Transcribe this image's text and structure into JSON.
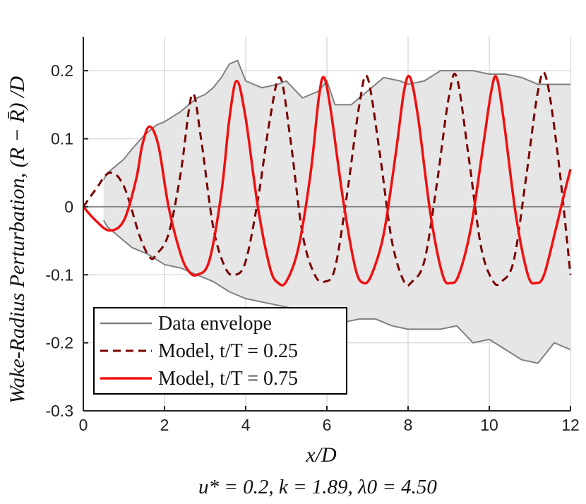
{
  "chart_data": {
    "type": "line",
    "title": "",
    "xlabel": "x/D",
    "ylabel": "Wake-Radius Perturbation, (R − R̄) /D",
    "subtitle": "u* = 0.2, k = 1.89, λ0 = 4.50",
    "xlim": [
      0,
      12
    ],
    "ylim": [
      -0.3,
      0.25
    ],
    "xticks": [
      0,
      2,
      4,
      6,
      8,
      10,
      12
    ],
    "xtick_labels": [
      "0",
      "2",
      "4",
      "6",
      "8",
      "10",
      "12"
    ],
    "yticks": [
      -0.3,
      -0.2,
      -0.1,
      0,
      0.1,
      0.2
    ],
    "ytick_labels": [
      "-0.3",
      "-0.2",
      "-0.1",
      "0",
      "0.1",
      "0.2"
    ],
    "grid": true,
    "legend_position": "bottom-left",
    "series": [
      {
        "name": "Data envelope",
        "style": "solid-gray",
        "color": "#808080",
        "upper": {
          "x": [
            0.5,
            0.6,
            0.8,
            1.0,
            1.2,
            1.5,
            1.8,
            2.0,
            2.4,
            2.8,
            3.0,
            3.2,
            3.4,
            3.6,
            3.8,
            4.0,
            4.4,
            4.8,
            5.0,
            5.4,
            5.8,
            6.0,
            6.2,
            6.6,
            7.0,
            7.4,
            7.8,
            8.0,
            8.4,
            8.8,
            9.2,
            9.6,
            10.0,
            10.4,
            10.8,
            11.2,
            11.6,
            12.0
          ],
          "y": [
            0.04,
            0.05,
            0.06,
            0.07,
            0.085,
            0.105,
            0.12,
            0.125,
            0.14,
            0.16,
            0.165,
            0.175,
            0.19,
            0.21,
            0.215,
            0.185,
            0.175,
            0.18,
            0.185,
            0.16,
            0.17,
            0.185,
            0.15,
            0.15,
            0.17,
            0.19,
            0.185,
            0.18,
            0.185,
            0.2,
            0.2,
            0.2,
            0.195,
            0.195,
            0.19,
            0.18,
            0.18,
            0.18
          ]
        },
        "lower": {
          "x": [
            0.5,
            0.6,
            0.8,
            1.0,
            1.2,
            1.6,
            2.0,
            2.4,
            2.8,
            3.2,
            3.6,
            4.0,
            4.4,
            4.8,
            5.2,
            5.6,
            6.0,
            6.4,
            6.8,
            7.2,
            7.6,
            8.0,
            8.4,
            8.8,
            9.2,
            9.6,
            10.0,
            10.4,
            10.8,
            11.2,
            11.6,
            12.0
          ],
          "y": [
            -0.02,
            -0.03,
            -0.04,
            -0.05,
            -0.06,
            -0.07,
            -0.085,
            -0.09,
            -0.1,
            -0.11,
            -0.125,
            -0.135,
            -0.14,
            -0.145,
            -0.15,
            -0.16,
            -0.16,
            -0.17,
            -0.165,
            -0.165,
            -0.175,
            -0.18,
            -0.18,
            -0.18,
            -0.175,
            -0.2,
            -0.195,
            -0.21,
            -0.225,
            -0.23,
            -0.2,
            -0.21
          ]
        }
      },
      {
        "name": "Model, t/T = 0.25",
        "style": "dashed",
        "color": "#7a0000",
        "x": [
          0,
          0.3,
          0.65,
          1.0,
          1.4,
          1.65,
          1.8,
          2.1,
          2.4,
          2.68,
          2.9,
          3.2,
          3.5,
          3.75,
          4.0,
          4.3,
          4.6,
          4.85,
          5.1,
          5.4,
          5.7,
          5.95,
          6.2,
          6.5,
          6.8,
          7.0,
          7.3,
          7.6,
          7.9,
          8.1,
          8.4,
          8.7,
          9.0,
          9.2,
          9.5,
          9.8,
          10.1,
          10.3,
          10.6,
          10.9,
          11.2,
          11.4,
          11.7,
          12.0
        ],
        "y": [
          0,
          0.025,
          0.05,
          0.03,
          -0.045,
          -0.075,
          -0.07,
          -0.04,
          0.05,
          0.165,
          0.1,
          -0.03,
          -0.09,
          -0.1,
          -0.08,
          0.01,
          0.13,
          0.19,
          0.1,
          -0.04,
          -0.1,
          -0.11,
          -0.09,
          0.02,
          0.15,
          0.19,
          0.08,
          -0.05,
          -0.11,
          -0.11,
          -0.08,
          0.03,
          0.16,
          0.19,
          0.07,
          -0.06,
          -0.11,
          -0.11,
          -0.08,
          0.04,
          0.17,
          0.19,
          0.07,
          -0.1
        ]
      },
      {
        "name": "Model, t/T = 0.75",
        "style": "solid",
        "color": "#f01010",
        "x": [
          0,
          0.3,
          0.65,
          1.0,
          1.3,
          1.45,
          1.63,
          1.85,
          2.1,
          2.4,
          2.6,
          2.8,
          3.1,
          3.4,
          3.6,
          3.78,
          4.0,
          4.3,
          4.6,
          4.8,
          5.0,
          5.3,
          5.6,
          5.8,
          5.93,
          6.1,
          6.4,
          6.7,
          6.9,
          7.1,
          7.4,
          7.7,
          7.9,
          8.05,
          8.25,
          8.55,
          8.85,
          9.05,
          9.25,
          9.55,
          9.85,
          10.05,
          10.18,
          10.35,
          10.65,
          10.95,
          11.15,
          11.35,
          11.65,
          11.85,
          12.0
        ],
        "y": [
          0,
          -0.02,
          -0.035,
          -0.02,
          0.04,
          0.09,
          0.118,
          0.09,
          0.0,
          -0.07,
          -0.095,
          -0.1,
          -0.08,
          0.02,
          0.13,
          0.185,
          0.13,
          0.0,
          -0.09,
          -0.112,
          -0.11,
          -0.06,
          0.05,
          0.16,
          0.19,
          0.14,
          0.01,
          -0.09,
          -0.112,
          -0.1,
          -0.04,
          0.08,
          0.17,
          0.19,
          0.13,
          -0.01,
          -0.1,
          -0.112,
          -0.1,
          -0.03,
          0.09,
          0.17,
          0.19,
          0.13,
          -0.01,
          -0.1,
          -0.112,
          -0.1,
          -0.03,
          0.02,
          0.055
        ]
      }
    ]
  }
}
